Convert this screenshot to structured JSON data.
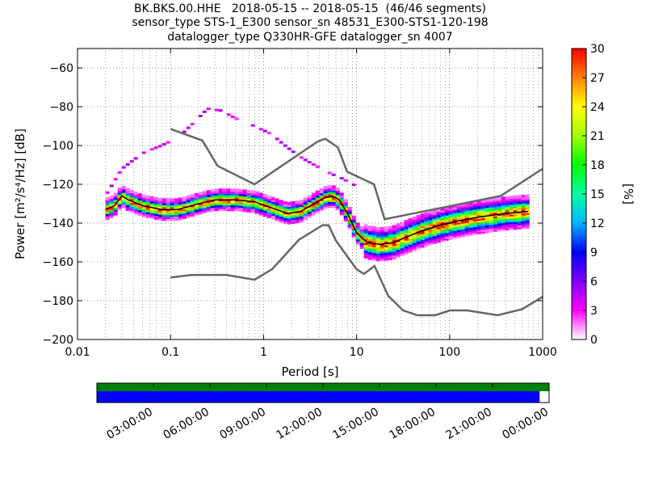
{
  "title": {
    "line1": "BK.BKS.00.HHE   2018-05-15 -- 2018-05-15  (46/46 segments)",
    "line2": "sensor_type STS-1_E300 sensor_sn 48531_E300-STS1-120-198",
    "line3": "datalogger_type Q330HR-GFE datalogger_sn 4007"
  },
  "chart_data": [
    {
      "type": "heatmap",
      "subtype": "probabilistic-power-spectral-density",
      "xlabel": "Period [s]",
      "ylabel": "Power [m²/s⁴/Hz] [dB]",
      "xscale": "log",
      "xlim": [
        0.01,
        1000
      ],
      "ylim": [
        -200,
        -50
      ],
      "xticks": [
        0.01,
        0.1,
        1,
        10,
        100,
        1000
      ],
      "xtick_labels": [
        "0.01",
        "0.1",
        "1",
        "10",
        "100",
        "1000"
      ],
      "yticks": [
        -200,
        -180,
        -160,
        -140,
        -120,
        -100,
        -80,
        -60
      ],
      "ytick_labels": [
        "−200",
        "−180",
        "−160",
        "−140",
        "−120",
        "−100",
        "−80",
        "−60"
      ],
      "grid": true,
      "colorbar": {
        "label": "[%]",
        "range": [
          0,
          30
        ],
        "ticks": [
          0,
          3,
          6,
          9,
          12,
          15,
          18,
          21,
          24,
          27,
          30
        ],
        "colormap": [
          "#ffffff",
          "#ff00ff",
          "#8000ff",
          "#0000ff",
          "#00b4ff",
          "#00ffa0",
          "#00ff00",
          "#a0ff00",
          "#ffff00",
          "#ff8000",
          "#ff0000"
        ]
      },
      "noise_model_high": {
        "x": [
          0.1,
          0.22,
          0.32,
          0.8,
          3.8,
          4.6,
          6.3,
          7.9,
          15.4,
          20,
          354,
          1000
        ],
        "y": [
          -91.5,
          -97.4,
          -110.5,
          -120,
          -98,
          -96.5,
          -101,
          -113.5,
          -120,
          -138,
          -126,
          -112
        ]
      },
      "noise_model_low": {
        "x": [
          0.1,
          0.17,
          0.4,
          0.8,
          1.24,
          2.4,
          4.3,
          5,
          6,
          10,
          12,
          15.6,
          21.9,
          31.6,
          45,
          70,
          101,
          154,
          328,
          600,
          1000
        ],
        "y": [
          -168,
          -166.7,
          -166.7,
          -169.2,
          -163.7,
          -148.6,
          -141.1,
          -141.1,
          -149,
          -163.8,
          -166.2,
          -162.1,
          -177.5,
          -185,
          -187.5,
          -187.5,
          -185,
          -185,
          -187.5,
          -184.4,
          -178
        ]
      },
      "median_curve": {
        "x": [
          0.02,
          0.025,
          0.03,
          0.035,
          0.05,
          0.08,
          0.12,
          0.2,
          0.3,
          0.5,
          0.8,
          1.2,
          1.8,
          2.5,
          3.5,
          4.5,
          5.5,
          6.5,
          8,
          10,
          13,
          18,
          25,
          35,
          50,
          80,
          120,
          200,
          400,
          700
        ],
        "y": [
          -133,
          -131,
          -126,
          -128,
          -131,
          -133,
          -133,
          -130,
          -128,
          -128,
          -129,
          -132,
          -135,
          -134,
          -130,
          -127,
          -126,
          -128,
          -135,
          -145,
          -150,
          -151,
          -150,
          -147,
          -144,
          -141,
          -139,
          -137,
          -135,
          -134
        ]
      },
      "outliers_upper": {
        "x": [
          0.02,
          0.03,
          0.05,
          0.08,
          0.12,
          0.18,
          0.25,
          0.35,
          0.5,
          0.8,
          1.2,
          1.8,
          2.5,
          3.5,
          5,
          7,
          10
        ],
        "y": [
          -126,
          -112,
          -104,
          -100,
          -96,
          -88,
          -81,
          -82,
          -86,
          -90,
          -94,
          -101,
          -106,
          -110,
          -114,
          -117,
          -121
        ]
      },
      "timeline_coverage": {
        "tick_labels": [
          "03:00:00",
          "06:00:00",
          "09:00:00",
          "12:00:00",
          "15:00:00",
          "18:00:00",
          "21:00:00",
          "00:00:00"
        ],
        "data_fraction": 0.979,
        "top_bar_color": "#008000",
        "bottom_bar_color": "#0000ff"
      }
    }
  ]
}
